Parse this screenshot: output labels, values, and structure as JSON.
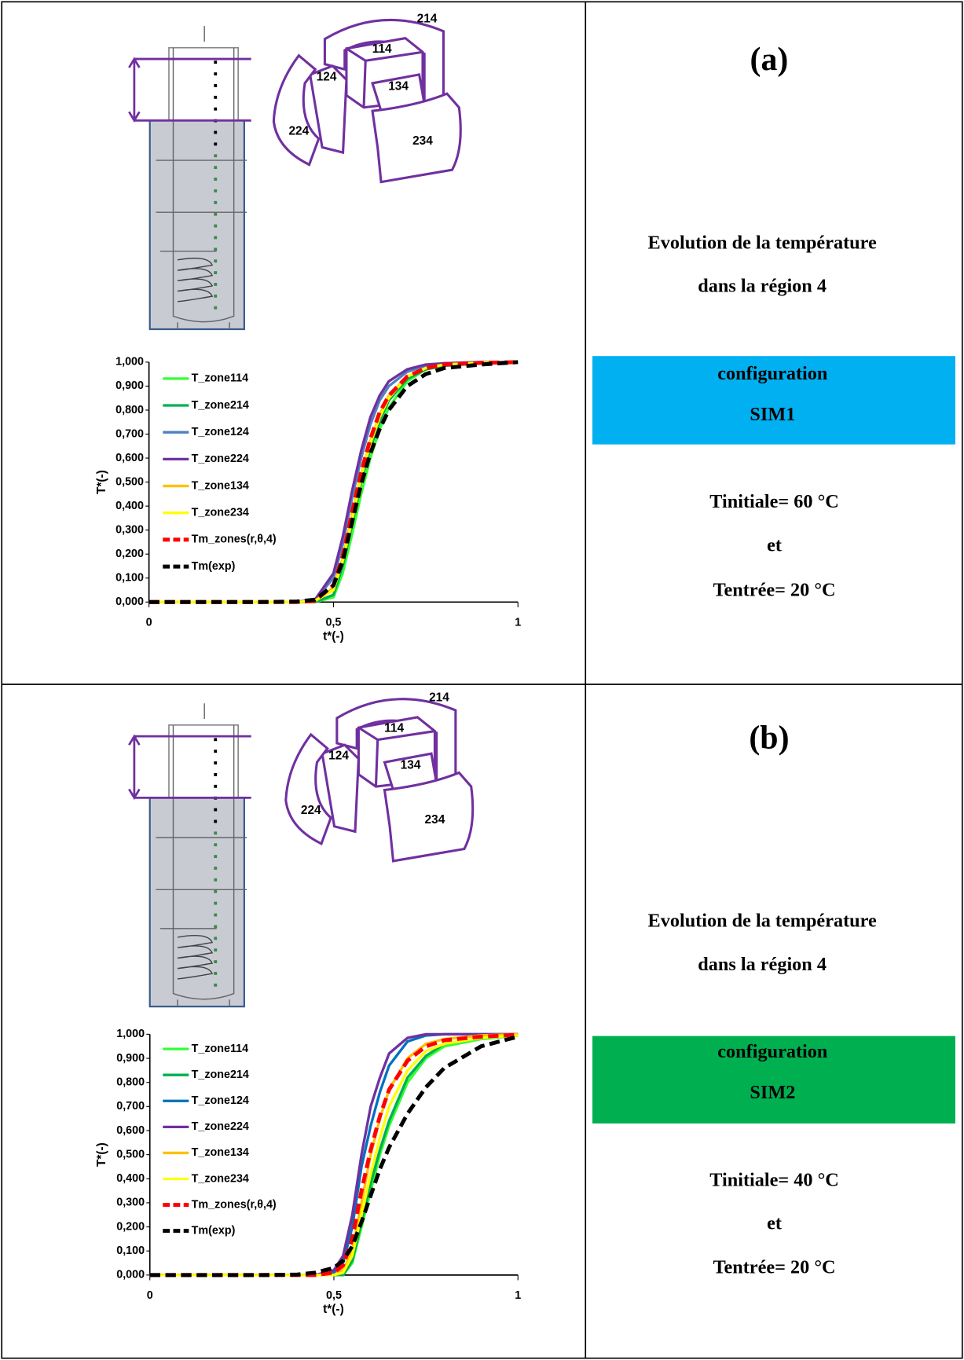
{
  "panels": [
    {
      "label": "(a)",
      "title_lines": [
        "Evolution de la température",
        "dans la région 4"
      ],
      "configuration": [
        "configuration",
        "SIM1"
      ],
      "box_color": "#00b0f0",
      "conditions": [
        "Tinitiale= 60 °C",
        "et",
        "Tentrée= 20 °C"
      ],
      "zones": [
        "214",
        "114",
        "124",
        "134",
        "224",
        "234"
      ]
    },
    {
      "label": "(b)",
      "title_lines": [
        "Evolution de la température",
        "dans la région 4"
      ],
      "configuration": [
        "configuration",
        "SIM2"
      ],
      "box_color": "#00b050",
      "conditions": [
        "Tinitiale= 40 °C",
        "et",
        "Tentrée= 20 °C"
      ],
      "zones": [
        "214",
        "114",
        "124",
        "134",
        "224",
        "234"
      ]
    }
  ],
  "chart_data": [
    {
      "type": "line",
      "x_label": "t*(-)",
      "y_label": "T*(-)",
      "xlim": [
        0,
        1
      ],
      "ylim": [
        0,
        1
      ],
      "xticks": [
        0,
        {
          "value": 0.5,
          "label": "0,5"
        },
        1
      ],
      "yticks": [
        {
          "value": 0,
          "label": "0,000"
        },
        {
          "value": 0.1,
          "label": "0,100"
        },
        {
          "value": 0.2,
          "label": "0,200"
        },
        {
          "value": 0.3,
          "label": "0,300"
        },
        {
          "value": 0.4,
          "label": "0,400"
        },
        {
          "value": 0.5,
          "label": "0,500"
        },
        {
          "value": 0.6,
          "label": "0,600"
        },
        {
          "value": 0.7,
          "label": "0,700"
        },
        {
          "value": 0.8,
          "label": "0,800"
        },
        {
          "value": 0.9,
          "label": "0,900"
        },
        {
          "value": 1,
          "label": "1,000"
        }
      ],
      "x": [
        0,
        0.1,
        0.2,
        0.3,
        0.4,
        0.45,
        0.5,
        0.525,
        0.55,
        0.575,
        0.6,
        0.625,
        0.65,
        0.7,
        0.75,
        0.8,
        0.9,
        1
      ],
      "series": [
        {
          "name": "T_zone114",
          "color": "#33ff33",
          "dashed": false,
          "values": [
            0,
            0,
            0,
            0,
            0,
            0,
            0.02,
            0.12,
            0.28,
            0.45,
            0.6,
            0.72,
            0.81,
            0.92,
            0.97,
            0.985,
            0.995,
            1
          ]
        },
        {
          "name": "T_zone214",
          "color": "#00b050",
          "dashed": false,
          "values": [
            0,
            0,
            0,
            0,
            0,
            0,
            0.03,
            0.15,
            0.32,
            0.5,
            0.64,
            0.75,
            0.84,
            0.93,
            0.97,
            0.985,
            0.995,
            1
          ]
        },
        {
          "name": "T_zone124",
          "color": "#4f81bd",
          "dashed": false,
          "values": [
            0,
            0,
            0,
            0,
            0,
            0.01,
            0.1,
            0.24,
            0.43,
            0.6,
            0.74,
            0.84,
            0.9,
            0.96,
            0.985,
            0.995,
            1,
            1
          ]
        },
        {
          "name": "T_zone224",
          "color": "#7030a0",
          "dashed": false,
          "values": [
            0,
            0,
            0,
            0,
            0,
            0.01,
            0.12,
            0.27,
            0.46,
            0.63,
            0.77,
            0.86,
            0.92,
            0.97,
            0.99,
            0.995,
            1,
            1
          ]
        },
        {
          "name": "T_zone134",
          "color": "#ffc000",
          "dashed": false,
          "values": [
            0,
            0,
            0,
            0,
            0,
            0.005,
            0.06,
            0.18,
            0.36,
            0.53,
            0.67,
            0.78,
            0.86,
            0.94,
            0.975,
            0.99,
            0.998,
            1
          ]
        },
        {
          "name": "T_zone234",
          "color": "#ffff00",
          "dashed": false,
          "values": [
            0,
            0,
            0,
            0,
            0,
            0.005,
            0.05,
            0.17,
            0.34,
            0.52,
            0.66,
            0.77,
            0.85,
            0.94,
            0.975,
            0.99,
            0.998,
            1
          ]
        },
        {
          "name": "Tm_zones(r,θ,4)",
          "color": "#ff0000",
          "dashed": true,
          "values": [
            0,
            0,
            0,
            0,
            0,
            0.005,
            0.07,
            0.19,
            0.37,
            0.54,
            0.68,
            0.79,
            0.86,
            0.94,
            0.975,
            0.99,
            0.997,
            1
          ]
        },
        {
          "name": "Tm(exp)",
          "color": "#000000",
          "dashed": true,
          "values": [
            0,
            0,
            0,
            0,
            0.002,
            0.01,
            0.07,
            0.17,
            0.33,
            0.49,
            0.62,
            0.72,
            0.8,
            0.9,
            0.95,
            0.975,
            0.99,
            1
          ]
        }
      ]
    },
    {
      "type": "line",
      "x_label": "t*(-)",
      "y_label": "T*(-)",
      "xlim": [
        0,
        1
      ],
      "ylim": [
        0,
        1
      ],
      "xticks": [
        0,
        {
          "value": 0.5,
          "label": "0,5"
        },
        1
      ],
      "yticks": [
        {
          "value": 0,
          "label": "0,000"
        },
        {
          "value": 0.1,
          "label": "0,100"
        },
        {
          "value": 0.2,
          "label": "0,200"
        },
        {
          "value": 0.3,
          "label": "0,300"
        },
        {
          "value": 0.4,
          "label": "0,400"
        },
        {
          "value": 0.5,
          "label": "0,500"
        },
        {
          "value": 0.6,
          "label": "0,600"
        },
        {
          "value": 0.7,
          "label": "0,700"
        },
        {
          "value": 0.8,
          "label": "0,800"
        },
        {
          "value": 0.9,
          "label": "0,900"
        },
        {
          "value": 1,
          "label": "1,000"
        }
      ],
      "x": [
        0,
        0.1,
        0.2,
        0.3,
        0.4,
        0.45,
        0.5,
        0.525,
        0.55,
        0.575,
        0.6,
        0.625,
        0.65,
        0.7,
        0.75,
        0.8,
        0.9,
        1
      ],
      "series": [
        {
          "name": "T_zone114",
          "color": "#33ff33",
          "dashed": false,
          "values": [
            0,
            0,
            0,
            0,
            0,
            0,
            0,
            0,
            0.05,
            0.2,
            0.35,
            0.5,
            0.62,
            0.8,
            0.9,
            0.95,
            0.98,
            0.995
          ]
        },
        {
          "name": "T_zone214",
          "color": "#00b050",
          "dashed": false,
          "values": [
            0,
            0,
            0,
            0,
            0,
            0,
            0,
            0,
            0.06,
            0.22,
            0.38,
            0.52,
            0.64,
            0.82,
            0.91,
            0.96,
            0.985,
            0.995
          ]
        },
        {
          "name": "T_zone124",
          "color": "#0070c0",
          "dashed": false,
          "values": [
            0,
            0,
            0,
            0,
            0,
            0,
            0.01,
            0.05,
            0.2,
            0.45,
            0.62,
            0.76,
            0.87,
            0.97,
            0.995,
            1,
            1,
            1
          ]
        },
        {
          "name": "T_zone224",
          "color": "#7030a0",
          "dashed": false,
          "values": [
            0,
            0,
            0,
            0,
            0,
            0,
            0.02,
            0.08,
            0.25,
            0.5,
            0.7,
            0.82,
            0.92,
            0.985,
            1,
            1,
            1,
            1
          ]
        },
        {
          "name": "T_zone134",
          "color": "#ffc000",
          "dashed": false,
          "values": [
            0,
            0,
            0,
            0,
            0,
            0,
            0,
            0.02,
            0.1,
            0.3,
            0.5,
            0.65,
            0.77,
            0.9,
            0.96,
            0.98,
            0.995,
            1
          ]
        },
        {
          "name": "T_zone234",
          "color": "#ffff00",
          "dashed": false,
          "values": [
            0,
            0,
            0,
            0,
            0,
            0,
            0,
            0.01,
            0.08,
            0.25,
            0.42,
            0.57,
            0.7,
            0.85,
            0.93,
            0.96,
            0.985,
            0.995
          ]
        },
        {
          "name": "Tm_zones(r,θ,4)",
          "color": "#ff0000",
          "dashed": true,
          "values": [
            0,
            0,
            0,
            0,
            0,
            0,
            0.01,
            0.04,
            0.15,
            0.35,
            0.52,
            0.66,
            0.77,
            0.89,
            0.95,
            0.975,
            0.99,
            0.998
          ]
        },
        {
          "name": "Tm(exp)",
          "color": "#000000",
          "dashed": true,
          "values": [
            0,
            0,
            0,
            0,
            0.002,
            0.01,
            0.03,
            0.06,
            0.12,
            0.22,
            0.33,
            0.44,
            0.53,
            0.67,
            0.78,
            0.86,
            0.95,
            0.99
          ]
        }
      ]
    }
  ]
}
